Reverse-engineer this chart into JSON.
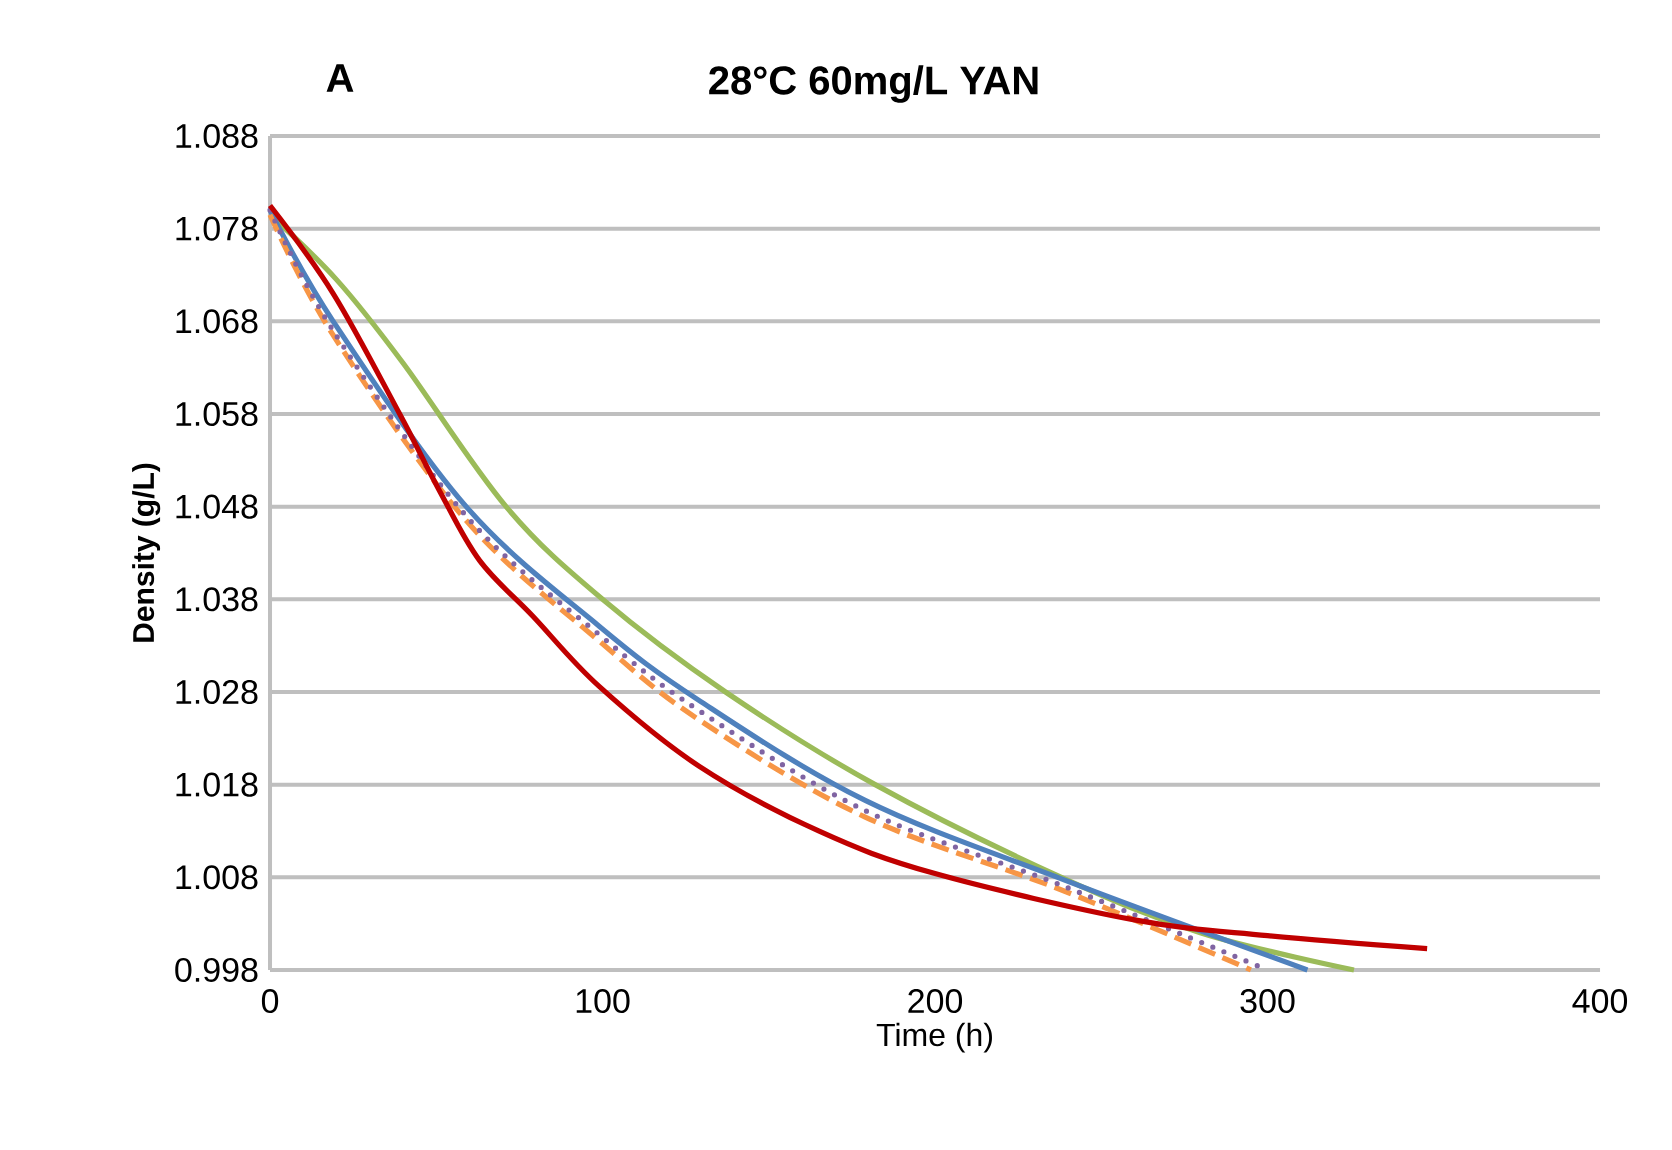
{
  "chart_data": {
    "type": "line",
    "title": "28°C 60mg/L YAN",
    "xlabel": "Time (h)",
    "ylabel": "Density (g/L)",
    "annotations": [
      "A"
    ],
    "xlim": [
      0,
      400
    ],
    "xticks": [
      0,
      100,
      200,
      300,
      400
    ],
    "ylim": [
      0.998,
      1.088
    ],
    "yticks": [
      {
        "value": 0.998,
        "label": "0.998"
      },
      {
        "value": 1.008,
        "label": "1.008"
      },
      {
        "value": 1.018,
        "label": "1.018"
      },
      {
        "value": 1.028,
        "label": "1.028"
      },
      {
        "value": 1.038,
        "label": "1.038"
      },
      {
        "value": 1.048,
        "label": "1.048"
      },
      {
        "value": 1.058,
        "label": "1.058"
      },
      {
        "value": 1.068,
        "label": "1.068"
      },
      {
        "value": 1.078,
        "label": "1.078"
      },
      {
        "value": 1.088,
        "label": "1.088"
      }
    ],
    "grid": "y",
    "marker": "none",
    "series": [
      {
        "color": "#9bbb59",
        "line_style": "solid",
        "x": [
          0,
          20,
          40,
          71,
          100,
          137,
          182,
          238,
          280,
          326
        ],
        "values": [
          1.0795,
          1.0725,
          1.0635,
          1.048,
          1.038,
          1.028,
          1.018,
          1.008,
          1.002,
          0.998
        ]
      },
      {
        "color": "#4f81bd",
        "line_style": "solid",
        "x": [
          0,
          19,
          59,
          99,
          129,
          179,
          239,
          312
        ],
        "values": [
          1.08,
          1.068,
          1.048,
          1.0351,
          1.0271,
          1.0163,
          1.0077,
          0.998
        ]
      },
      {
        "color": "#f79646",
        "line_style": "dashed",
        "x": [
          0,
          19,
          59,
          99,
          129,
          179,
          239,
          295
        ],
        "values": [
          1.0795,
          1.0665,
          1.0465,
          1.0335,
          1.025,
          1.0145,
          1.0065,
          0.998
        ]
      },
      {
        "color": "#8064a2",
        "line_style": "dotted",
        "x": [
          0,
          19,
          59,
          99,
          129,
          179,
          239,
          300
        ],
        "values": [
          1.08,
          1.067,
          1.047,
          1.0342,
          1.026,
          1.0152,
          1.007,
          0.998
        ]
      },
      {
        "color": "#c00000",
        "line_style": "solid",
        "x": [
          0,
          19,
          39,
          51,
          63,
          79,
          99,
          129,
          165,
          200,
          260,
          300,
          348
        ],
        "values": [
          1.0805,
          1.071,
          1.058,
          1.0497,
          1.0422,
          1.0362,
          1.0286,
          1.02,
          1.013,
          1.0084,
          1.0034,
          1.0017,
          1.0003
        ]
      }
    ]
  }
}
